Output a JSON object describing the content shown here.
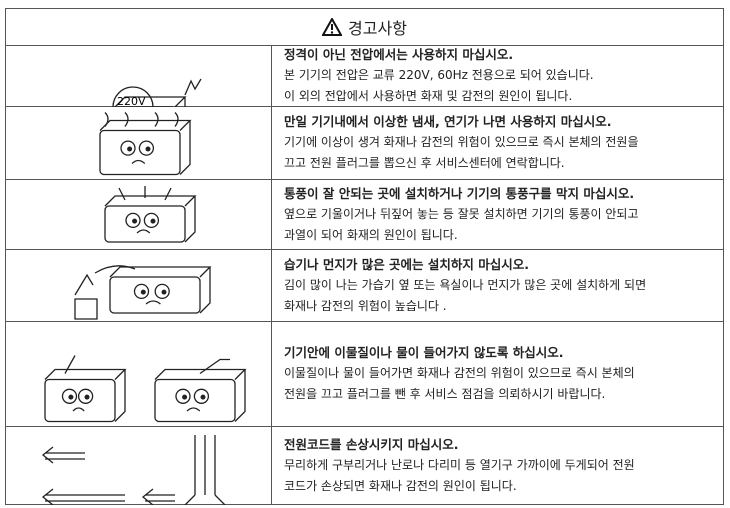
{
  "header": {
    "title": "경고사항"
  },
  "rows": [
    {
      "title": "정격이 아닌 전압에서는 사용하지 마십시오.",
      "image_label": "220V",
      "lines": [
        "본 기기의 전압은 교류 220V, 60Hz 전용으로 되어 있습니다.",
        "이 외의 전압에서 사용하면 화재 및 감전의 원인이 됩니다."
      ]
    },
    {
      "title": "만일 기기내에서 이상한 냄새, 연기가 나면 사용하지 마십시오.",
      "lines": [
        "기기에 이상이 생겨 화재나 감전의 위험이 있으므로 즉시 본체의 전원을",
        "끄고 전원 플러그를 뽑으신 후 서비스센터에 연락합니다."
      ]
    },
    {
      "title": "통풍이 잘 안되는 곳에 설치하거나 기기의 통풍구를 막지 마십시오.",
      "lines": [
        "옆으로 기울이거나 뒤짚어 놓는 등 잘못 설치하면 기기의 통풍이 안되고",
        "과열이 되어 화재의 원인이 됩니다."
      ]
    },
    {
      "title": "습기나 먼지가 많은 곳에는 설치하지 마십시오.",
      "lines": [
        "김이 많이 나는 가습기 옆 또는 욕실이나 먼지가 많은 곳에 설치하게 되면",
        "화재나 감전의 위험이 높습니다 ."
      ]
    },
    {
      "title": "기기안에 이물질이나 물이 들어가지 않도록 하십시오.",
      "lines": [
        "이물질이나 물이 들어가면 화재나 감전의 위험이 있으므로 즉시 본체의",
        "전원을 끄고 플러그를 뺀 후 서비스 점검을 의뢰하시기 바랍니다."
      ]
    },
    {
      "title": "전원코드를 손상시키지 마십시오.",
      "lines": [
        "무리하게 구부리거나 난로나 다리미 등 열기구 가까이에 두게되어 전원",
        "코드가 손상되면 화재나 감전의 원인이 됩니다."
      ]
    }
  ]
}
